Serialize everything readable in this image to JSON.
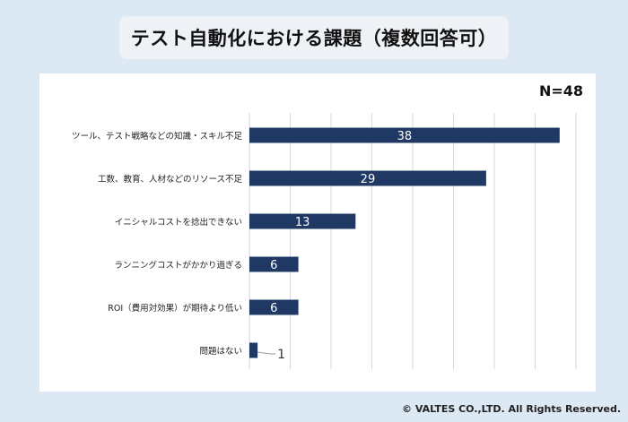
{
  "title": "テスト自動化における課題（複数回答可）",
  "copyright": "© VALTES CO.,LTD. All Rights Reserved.",
  "chart_data": {
    "type": "bar",
    "orientation": "horizontal",
    "title": "テスト自動化における課題（複数回答可）",
    "sample_label": "N=48",
    "categories": [
      "ツール、テスト戦略などの知識・スキル不足",
      "工数、教育、人材などのリソース不足",
      "イニシャルコストを捻出できない",
      "ランニングコストがかかり過ぎる",
      "ROI（費用対効果）が期待より低い",
      "問題はない"
    ],
    "values": [
      38,
      29,
      13,
      6,
      6,
      1
    ],
    "data_labels": [
      "38",
      "29",
      "13",
      "6",
      "6",
      "1"
    ],
    "xlim": [
      0,
      40
    ],
    "grid": true,
    "bar_color": "#1f3864",
    "grid_color": "#d9d9d9"
  }
}
